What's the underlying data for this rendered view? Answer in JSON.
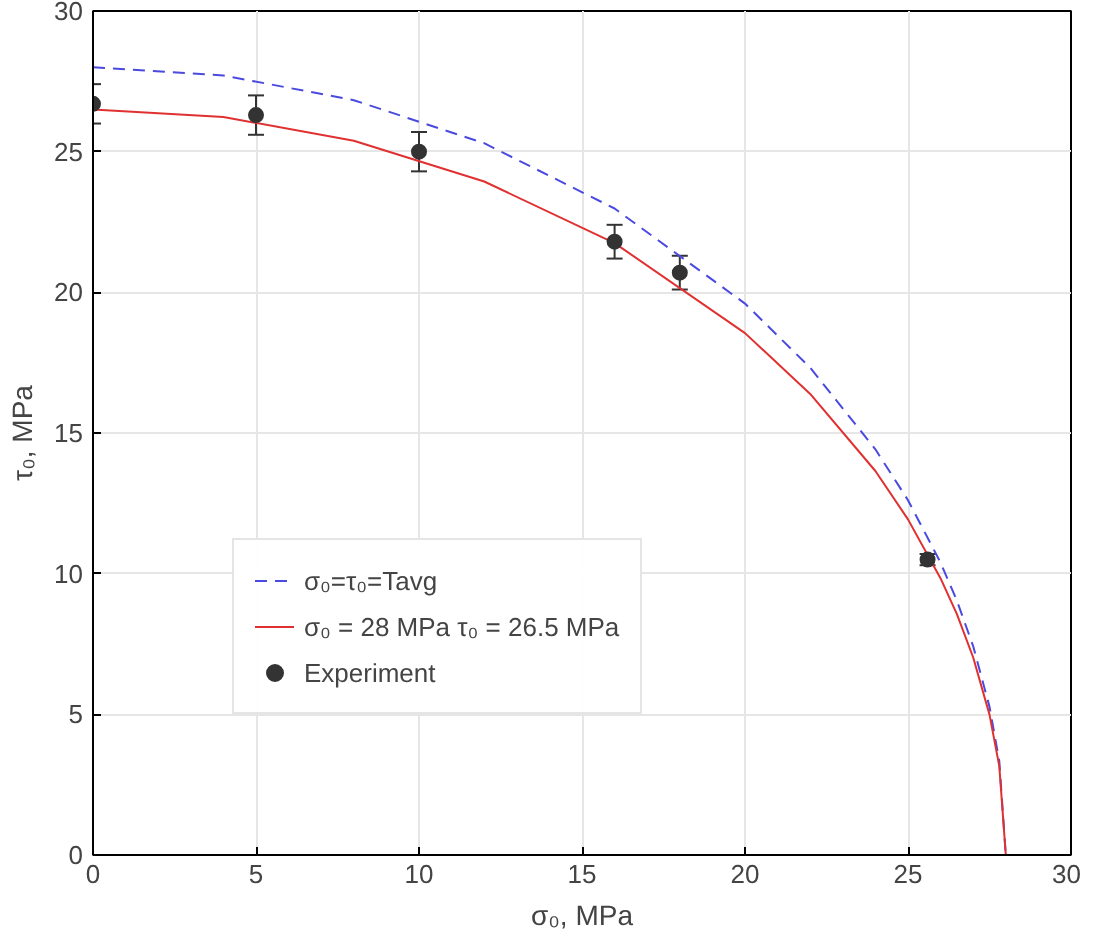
{
  "chart_data": {
    "type": "line",
    "xlabel": "σ₀, MPa",
    "ylabel": "τ₀, MPa",
    "xlim": [
      0,
      30
    ],
    "ylim": [
      0,
      30
    ],
    "xticks": [
      0,
      5,
      10,
      15,
      20,
      25,
      30
    ],
    "yticks": [
      0,
      5,
      10,
      15,
      20,
      25,
      30
    ],
    "grid": true,
    "legend": "bottom left",
    "series": [
      {
        "name": "σ₀=τ₀=Tavg",
        "color": "#4a4ae0",
        "line_style": "dashed",
        "x": [
          0,
          4,
          8,
          12,
          16,
          20,
          22,
          24,
          25,
          26,
          26.5,
          27,
          27.5,
          27.8,
          28
        ],
        "values": [
          28,
          27.71,
          26.83,
          25.3,
          22.98,
          19.6,
          17.32,
          14.42,
          12.61,
          10.39,
          9.04,
          7.42,
          5.27,
          3.34,
          0
        ]
      },
      {
        "name": "σ₀ = 28 MPa τ₀ = 26.5 MPa",
        "color": "#e03030",
        "line_style": "solid",
        "x": [
          0,
          4,
          8,
          12,
          16,
          20,
          22,
          24,
          25,
          26,
          26.5,
          27,
          27.5,
          27.8,
          28
        ],
        "values": [
          26.5,
          26.23,
          25.39,
          23.94,
          21.75,
          18.55,
          16.39,
          13.65,
          11.93,
          9.83,
          8.56,
          7.02,
          4.99,
          3.16,
          0
        ]
      },
      {
        "name": "Experiment",
        "type": "scatter",
        "color": "#333333",
        "marker": "circle",
        "x": [
          0,
          5,
          10,
          16,
          18,
          25.6
        ],
        "values": [
          26.7,
          26.3,
          25.0,
          21.8,
          20.7,
          10.5
        ],
        "errors": [
          0.7,
          0.7,
          0.7,
          0.6,
          0.6,
          0.2
        ]
      }
    ]
  }
}
